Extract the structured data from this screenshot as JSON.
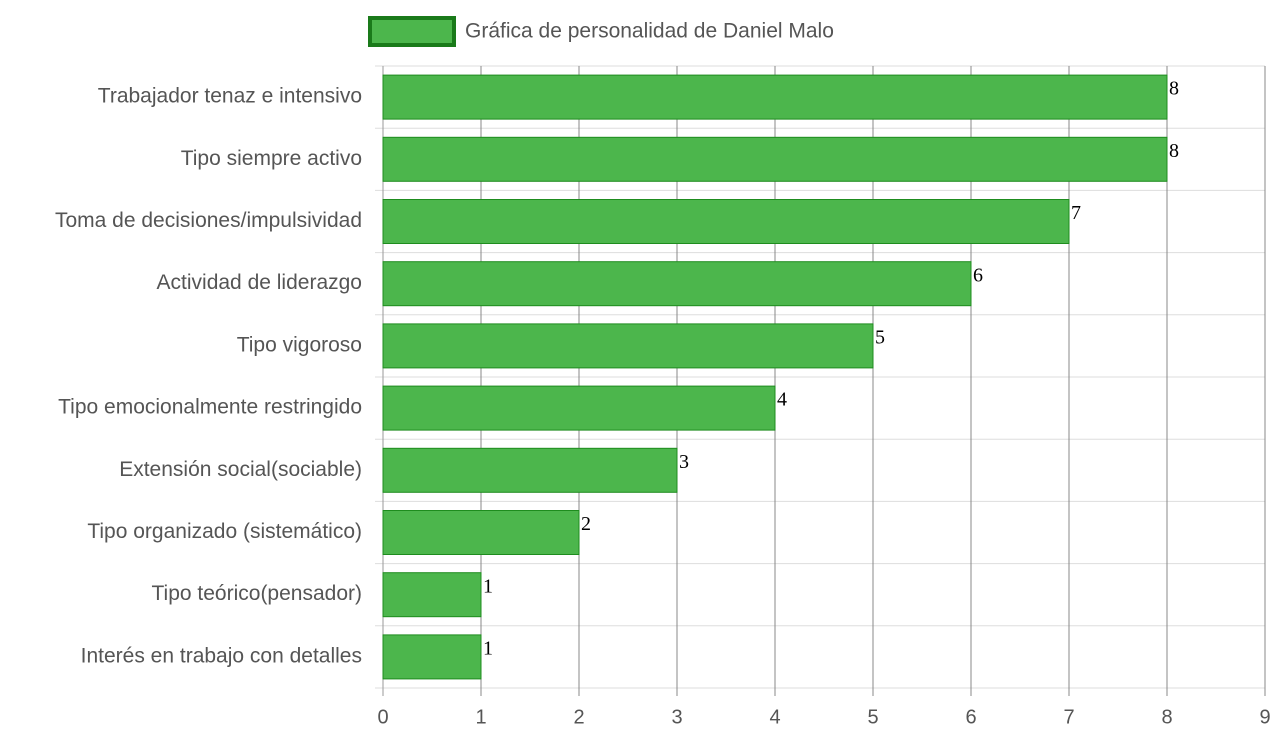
{
  "chart_data": {
    "type": "bar",
    "orientation": "horizontal",
    "categories": [
      "Trabajador tenaz e intensivo",
      "Tipo siempre activo",
      "Toma de decisiones/impulsividad",
      "Actividad de liderazgo",
      "Tipo vigoroso",
      "Tipo emocionalmente restringido",
      "Extensión social(sociable)",
      "Tipo organizado (sistemático)",
      "Tipo teórico(pensador)",
      "Interés en trabajo con detalles"
    ],
    "series": [
      {
        "name": "Gráfica de personalidad de Daniel Malo",
        "color": "#4cb64c",
        "border_color": "#1e8c1e",
        "values": [
          8,
          8,
          7,
          6,
          5,
          4,
          3,
          2,
          1,
          1
        ]
      }
    ],
    "xlim": [
      0,
      9
    ],
    "xticks": [
      0,
      1,
      2,
      3,
      4,
      5,
      6,
      7,
      8,
      9
    ],
    "grid": true,
    "legend": "top"
  }
}
